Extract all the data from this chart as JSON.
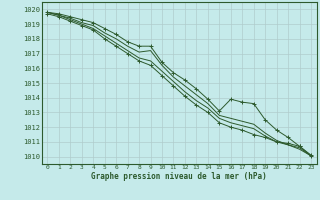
{
  "title": "Graphe pression niveau de la mer (hPa)",
  "bg_color": "#c5eaea",
  "grid_color": "#b0cccc",
  "line_color": "#2d5a2d",
  "ylim": [
    1009.5,
    1020.5
  ],
  "xlim": [
    -0.5,
    23.5
  ],
  "yticks": [
    1010,
    1011,
    1012,
    1013,
    1014,
    1015,
    1016,
    1017,
    1018,
    1019,
    1020
  ],
  "series": [
    [
      1019.8,
      1019.7,
      1019.5,
      1019.3,
      1019.1,
      1018.7,
      1018.3,
      1017.8,
      1017.5,
      1017.5,
      1016.4,
      1015.7,
      1015.2,
      1014.6,
      1013.9,
      1013.1,
      1013.9,
      1013.7,
      1013.6,
      1012.5,
      1011.8,
      1011.3,
      1010.7,
      1010.1
    ],
    [
      1019.8,
      1019.6,
      1019.4,
      1019.1,
      1018.9,
      1018.4,
      1018.0,
      1017.5,
      1017.1,
      1017.2,
      1016.2,
      1015.4,
      1014.8,
      1014.2,
      1013.6,
      1012.8,
      1012.6,
      1012.4,
      1012.2,
      1011.6,
      1011.1,
      1010.8,
      1010.5,
      1010.05
    ],
    [
      1019.8,
      1019.6,
      1019.3,
      1019.0,
      1018.7,
      1018.2,
      1017.7,
      1017.2,
      1016.7,
      1016.5,
      1015.8,
      1015.1,
      1014.4,
      1013.8,
      1013.3,
      1012.6,
      1012.3,
      1012.1,
      1011.9,
      1011.4,
      1011.0,
      1010.8,
      1010.6,
      1010.05
    ],
    [
      1019.7,
      1019.5,
      1019.2,
      1018.9,
      1018.6,
      1018.0,
      1017.5,
      1017.0,
      1016.5,
      1016.2,
      1015.5,
      1014.8,
      1014.1,
      1013.5,
      1013.0,
      1012.3,
      1012.0,
      1011.8,
      1011.5,
      1011.3,
      1011.0,
      1010.9,
      1010.7,
      1010.05
    ]
  ],
  "marker_series": [
    0,
    1,
    2,
    3
  ],
  "marker_x": [
    [
      0,
      1,
      2,
      3,
      4,
      5,
      6,
      7,
      8,
      9,
      10,
      11,
      12,
      13,
      14,
      15,
      16,
      17,
      18,
      19,
      20,
      21,
      22,
      23
    ],
    [],
    [],
    [
      0,
      1,
      2,
      3,
      4,
      5,
      6,
      7,
      8,
      9,
      10,
      11,
      12,
      13,
      14,
      15,
      16,
      17,
      18,
      19,
      20,
      21,
      22,
      23
    ]
  ]
}
